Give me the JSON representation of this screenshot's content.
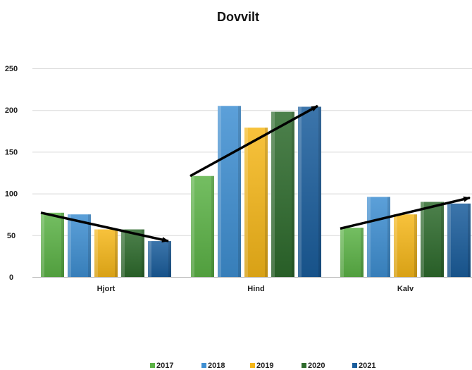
{
  "chart_data": {
    "type": "bar",
    "title": "Dovvilt",
    "xlabel": "",
    "ylabel": "",
    "categories": [
      "Hjort",
      "Hind",
      "Kalv"
    ],
    "ylim": [
      0,
      250
    ],
    "yticks": [
      0,
      50,
      100,
      150,
      200,
      250
    ],
    "grid": true,
    "legend_position": "bottom",
    "series": [
      {
        "name": "2017",
        "values": [
          77,
          121,
          59
        ],
        "color": "#5cb346"
      },
      {
        "name": "2018",
        "values": [
          75,
          205,
          96
        ],
        "color": "#3f8fd2"
      },
      {
        "name": "2019",
        "values": [
          57,
          179,
          75
        ],
        "color": "#f5b719"
      },
      {
        "name": "2020",
        "values": [
          57,
          198,
          90
        ],
        "color": "#2e6b2c"
      },
      {
        "name": "2021",
        "values": [
          43,
          204,
          88
        ],
        "color": "#1a5d9c"
      }
    ],
    "trend_arrows": [
      {
        "category": "Hjort",
        "from": 77,
        "to": 43
      },
      {
        "category": "Hind",
        "from": 121,
        "to": 205
      },
      {
        "category": "Kalv",
        "from": 58,
        "to": 95
      }
    ]
  }
}
